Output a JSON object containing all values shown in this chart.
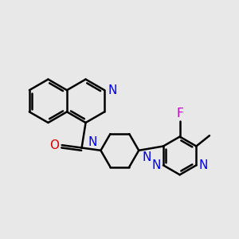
{
  "background_color": "#e8e8e8",
  "bond_color": "#000000",
  "N_color": "#0000ee",
  "O_color": "#dd0000",
  "F_color": "#cc00cc",
  "line_width": 1.8,
  "font_size": 10.5,
  "figsize": [
    3.0,
    3.0
  ],
  "dpi": 100,
  "xlim": [
    0,
    10
  ],
  "ylim": [
    0,
    10
  ]
}
